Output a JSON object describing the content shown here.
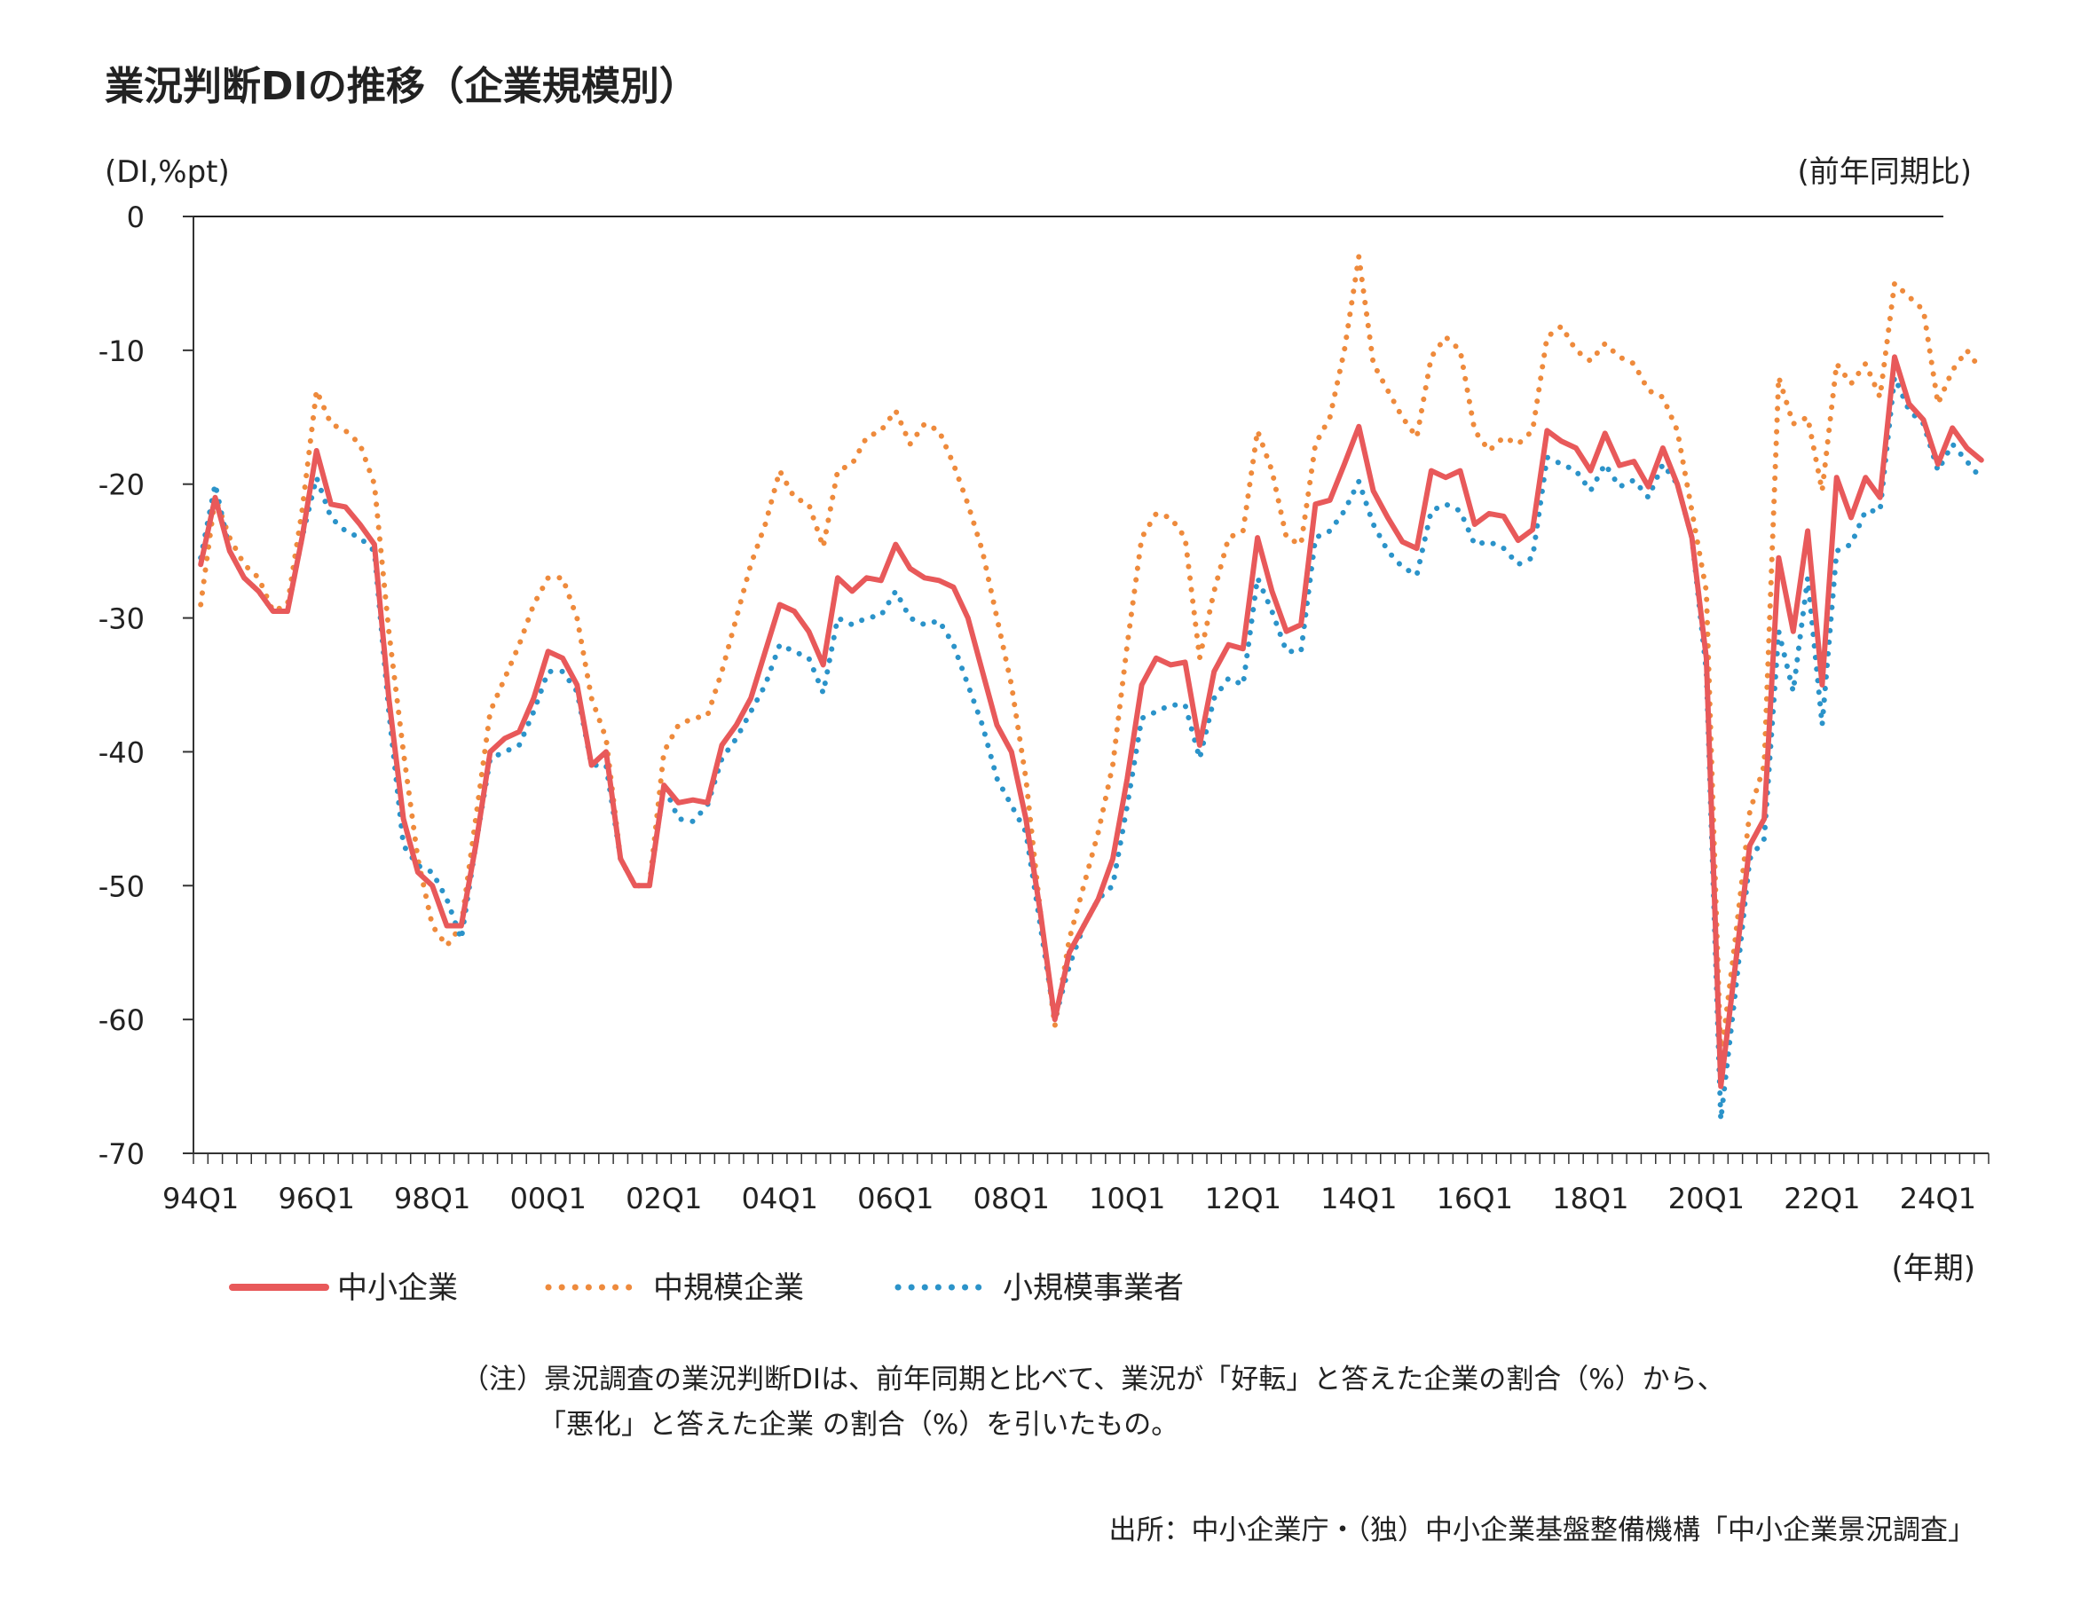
{
  "chart_data": {
    "type": "line",
    "title": "業況判断DIの推移（企業規模別）",
    "ylabel": "(DI,%pt)",
    "y_note": "(前年同期比)",
    "xlabel": "(年期)",
    "ylim": [
      -70,
      0
    ],
    "yticks": [
      0,
      -10,
      -20,
      -30,
      -40,
      -50,
      -60,
      -70
    ],
    "xtick_labels": [
      "94Q1",
      "96Q1",
      "98Q1",
      "00Q1",
      "02Q1",
      "04Q1",
      "06Q1",
      "08Q1",
      "10Q1",
      "12Q1",
      "14Q1",
      "16Q1",
      "18Q1",
      "20Q1",
      "22Q1",
      "24Q1"
    ],
    "grid": false,
    "legend_position": "bottom",
    "series": [
      {
        "name": "中小企業",
        "color": "#e8595a",
        "style": "solid",
        "values": [
          -26,
          -21,
          -25,
          -27,
          -28,
          -29.5,
          -29.5,
          -24,
          -17.5,
          -21.5,
          -21.7,
          -23,
          -24.5,
          -36,
          -45,
          -49,
          -50,
          -53,
          -53,
          -47,
          -40,
          -39,
          -38.5,
          -36,
          -32.5,
          -33,
          -35,
          -41,
          -40,
          -48,
          -50,
          -50,
          -42.5,
          -43.8,
          -43.6,
          -43.8,
          -39.5,
          -38,
          -36,
          -32.5,
          -29,
          -29.5,
          -31,
          -33.5,
          -27,
          -28,
          -27,
          -27.2,
          -24.5,
          -26.3,
          -27,
          -27.2,
          -27.7,
          -30,
          -34,
          -38,
          -40,
          -45,
          -52,
          -60,
          -55,
          -53,
          -51,
          -48,
          -42,
          -35,
          -33,
          -33.5,
          -33.3,
          -39.5,
          -34,
          -32,
          -32.3,
          -24,
          -28,
          -31,
          -30.5,
          -21.5,
          -21.2,
          -18.5,
          -15.7,
          -20.5,
          -22.5,
          -24.3,
          -24.8,
          -19,
          -19.5,
          -19,
          -23,
          -22.2,
          -22.4,
          -24.2,
          -23.4,
          -16,
          -16.8,
          -17.3,
          -19,
          -16.2,
          -18.6,
          -18.3,
          -20.2,
          -17.3,
          -20,
          -24,
          -33,
          -65,
          -56,
          -47,
          -45,
          -25.5,
          -31,
          -23.5,
          -35,
          -19.5,
          -22.5,
          -19.5,
          -21,
          -10.5,
          -14,
          -15.2,
          -18.5,
          -15.8,
          -17.3,
          -18.2
        ]
      },
      {
        "name": "中規模企業",
        "color": "#ee8a3c",
        "style": "dotted",
        "values": [
          -29,
          -21,
          -24,
          -26,
          -27,
          -29.5,
          -29,
          -22,
          -13,
          -15.5,
          -16,
          -17,
          -20,
          -31,
          -40,
          -48,
          -53,
          -54.5,
          -53,
          -45,
          -37,
          -34.5,
          -32,
          -29,
          -27,
          -27,
          -30,
          -36,
          -39,
          -48,
          -50,
          -50,
          -40,
          -38,
          -37.5,
          -37.3,
          -34,
          -30,
          -26,
          -23,
          -19,
          -21,
          -21.5,
          -24.7,
          -19,
          -18.5,
          -16.5,
          -16,
          -14.5,
          -17,
          -15.5,
          -16,
          -18.5,
          -21.5,
          -25,
          -30,
          -35,
          -42,
          -52,
          -60.5,
          -54,
          -50,
          -46,
          -41,
          -32,
          -24,
          -22.2,
          -22.5,
          -24,
          -33,
          -28,
          -24,
          -23.5,
          -16,
          -19,
          -24,
          -24.5,
          -17,
          -15,
          -10,
          -3,
          -11,
          -13,
          -15,
          -16.5,
          -10.5,
          -9,
          -10,
          -16,
          -17.5,
          -16.5,
          -17,
          -16,
          -9,
          -8.2,
          -10,
          -10.8,
          -9.5,
          -10.5,
          -11,
          -13,
          -13.5,
          -16,
          -22,
          -28,
          -63,
          -54,
          -44.5,
          -41,
          -12,
          -15.5,
          -15,
          -20.5,
          -11,
          -12.5,
          -11,
          -13.5,
          -5,
          -6,
          -7,
          -14,
          -11.5,
          -10,
          -11.5
        ]
      },
      {
        "name": "小規模事業者",
        "color": "#2b93c9",
        "style": "dotted",
        "values": [
          -25.5,
          -20,
          -25,
          -27,
          -28,
          -29.5,
          -29.5,
          -24,
          -19.5,
          -22.5,
          -23.5,
          -24,
          -25,
          -37,
          -47,
          -48.5,
          -49,
          -51,
          -54,
          -47,
          -40.5,
          -40,
          -39.5,
          -37,
          -34,
          -34,
          -35.5,
          -41,
          -41,
          -48,
          -50,
          -50,
          -42.5,
          -45,
          -45.2,
          -44,
          -40.5,
          -39,
          -37,
          -35,
          -32,
          -32.5,
          -33,
          -35.6,
          -30,
          -30.5,
          -30,
          -29.8,
          -28,
          -30,
          -30.5,
          -30.2,
          -32,
          -35,
          -38,
          -42,
          -44,
          -46,
          -53,
          -60,
          -56,
          -53,
          -51,
          -50,
          -44,
          -37.5,
          -37,
          -36.5,
          -36.5,
          -40.5,
          -36,
          -34.5,
          -35,
          -27,
          -29.5,
          -32.5,
          -32.5,
          -24,
          -23.5,
          -22,
          -19.8,
          -23,
          -25,
          -26.2,
          -26.8,
          -22,
          -21.5,
          -22,
          -24.5,
          -24.3,
          -24.8,
          -26,
          -25.5,
          -18,
          -18.5,
          -19,
          -20.5,
          -18.5,
          -20.2,
          -19.7,
          -21,
          -18.5,
          -20,
          -24,
          -34,
          -67.5,
          -58,
          -48,
          -46.5,
          -31,
          -35.5,
          -27,
          -38,
          -25,
          -24.5,
          -22,
          -22,
          -12,
          -14.5,
          -15.5,
          -19,
          -17,
          -18.3,
          -19.6
        ]
      }
    ]
  },
  "note": {
    "line1": "（注）景況調査の業況判断DIは、前年同期と比べて、業況が「好転」と答えた企業の割合（%）から、",
    "line2": "「悪化」と答えた企業 の割合（%）を引いたもの。"
  },
  "source": "出所：中小企業庁・（独）中小企業基盤整備機構「中小企業景況調査」"
}
